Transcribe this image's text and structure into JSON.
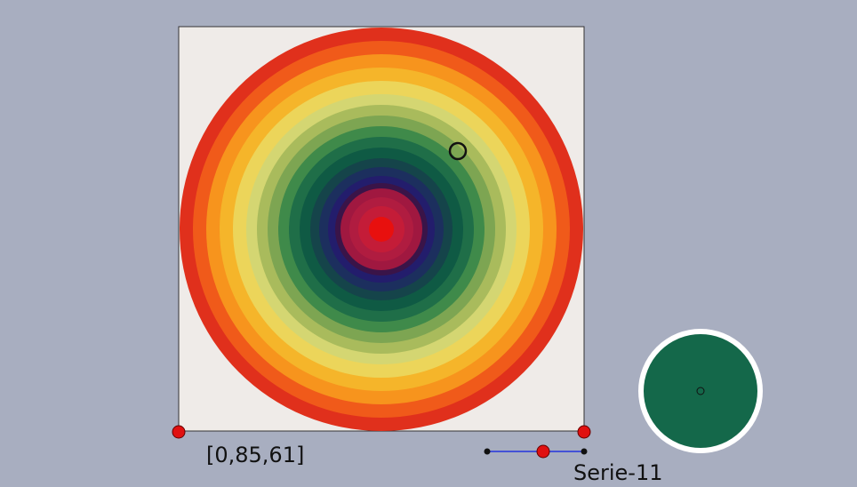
{
  "color_label": "[0,85,61]",
  "slider_label": "Serie-11"
}
